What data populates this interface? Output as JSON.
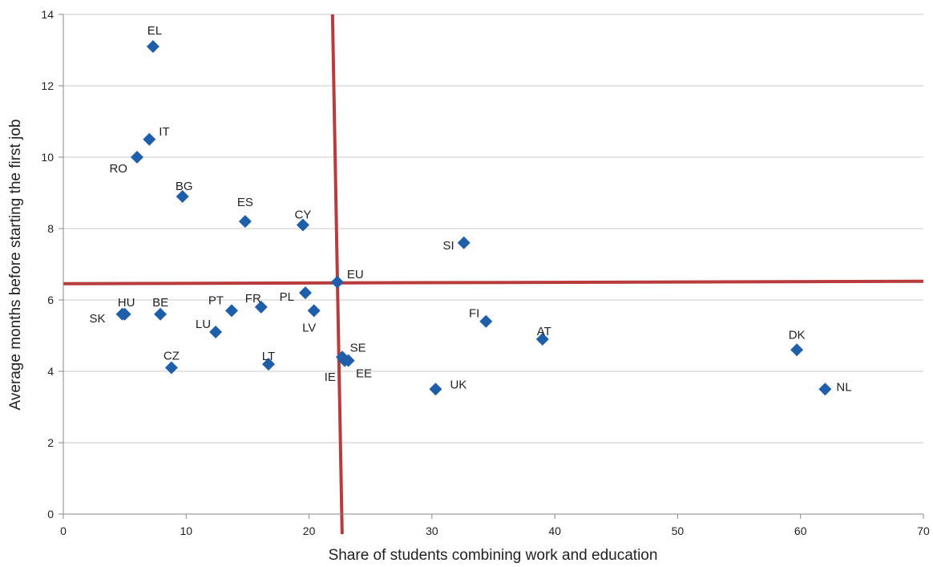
{
  "chart_data": {
    "type": "scatter",
    "title": "",
    "xlabel": "Share of students combining work and education",
    "ylabel": "Average months before starting the first job",
    "xlim": [
      0,
      70
    ],
    "ylim": [
      0,
      14
    ],
    "xticks": [
      0,
      10,
      20,
      30,
      40,
      50,
      60,
      70
    ],
    "yticks": [
      0,
      2,
      4,
      6,
      8,
      10,
      12,
      14
    ],
    "grid": "horizontal",
    "marker": "diamond",
    "colors": {
      "marker": "#1f5ea8",
      "reference_lines": "#b83c3c",
      "grid": "#c8c8c8",
      "axis": "#888888"
    },
    "reference_lines": {
      "x": 22.3,
      "y": 6.5
    },
    "points": [
      {
        "label": "EL",
        "x": 7.3,
        "y": 13.1
      },
      {
        "label": "IT",
        "x": 7.0,
        "y": 10.5
      },
      {
        "label": "RO",
        "x": 6.0,
        "y": 10.0
      },
      {
        "label": "BG",
        "x": 9.7,
        "y": 8.9
      },
      {
        "label": "ES",
        "x": 14.8,
        "y": 8.2
      },
      {
        "label": "CY",
        "x": 19.5,
        "y": 8.1
      },
      {
        "label": "SI",
        "x": 32.6,
        "y": 7.6
      },
      {
        "label": "EU",
        "x": 22.3,
        "y": 6.5
      },
      {
        "label": "HU",
        "x": 5.0,
        "y": 5.6
      },
      {
        "label": "SK",
        "x": 4.8,
        "y": 5.6
      },
      {
        "label": "BE",
        "x": 7.9,
        "y": 5.6
      },
      {
        "label": "PT",
        "x": 13.7,
        "y": 5.7
      },
      {
        "label": "FR",
        "x": 16.1,
        "y": 5.8
      },
      {
        "label": "PL",
        "x": 19.7,
        "y": 6.2
      },
      {
        "label": "LV",
        "x": 20.4,
        "y": 5.7
      },
      {
        "label": "LU",
        "x": 12.4,
        "y": 5.1
      },
      {
        "label": "FI",
        "x": 34.4,
        "y": 5.4
      },
      {
        "label": "AT",
        "x": 39.0,
        "y": 4.9
      },
      {
        "label": "DK",
        "x": 59.7,
        "y": 4.6
      },
      {
        "label": "CZ",
        "x": 8.8,
        "y": 4.1
      },
      {
        "label": "LT",
        "x": 16.7,
        "y": 4.2
      },
      {
        "label": "SE",
        "x": 23.2,
        "y": 4.3
      },
      {
        "label": "IE",
        "x": 22.7,
        "y": 4.4
      },
      {
        "label": "EE",
        "x": 22.9,
        "y": 4.3
      },
      {
        "label": "UK",
        "x": 30.3,
        "y": 3.5
      },
      {
        "label": "NL",
        "x": 62.0,
        "y": 3.5
      }
    ]
  }
}
